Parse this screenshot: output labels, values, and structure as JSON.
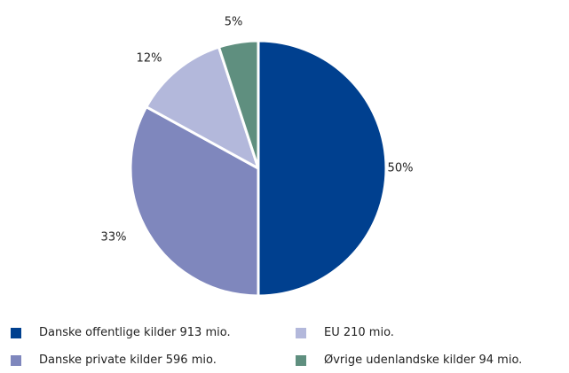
{
  "chart_data": {
    "type": "pie",
    "slices": [
      {
        "label": "Danske offentlige kilder 913 mio.",
        "value": 50,
        "value_label": "50%",
        "color": "#00408f"
      },
      {
        "label": "Danske private kilder 596 mio.",
        "value": 33,
        "value_label": "33%",
        "color": "#7f87bd"
      },
      {
        "label": "EU 210 mio.",
        "value": 12,
        "value_label": "12%",
        "color": "#b3b8db"
      },
      {
        "label": "Øvrige udenlandske kilder 94 mio.",
        "value": 5,
        "value_label": "5%",
        "color": "#5f8f7f"
      }
    ],
    "legend_position": "bottom"
  }
}
